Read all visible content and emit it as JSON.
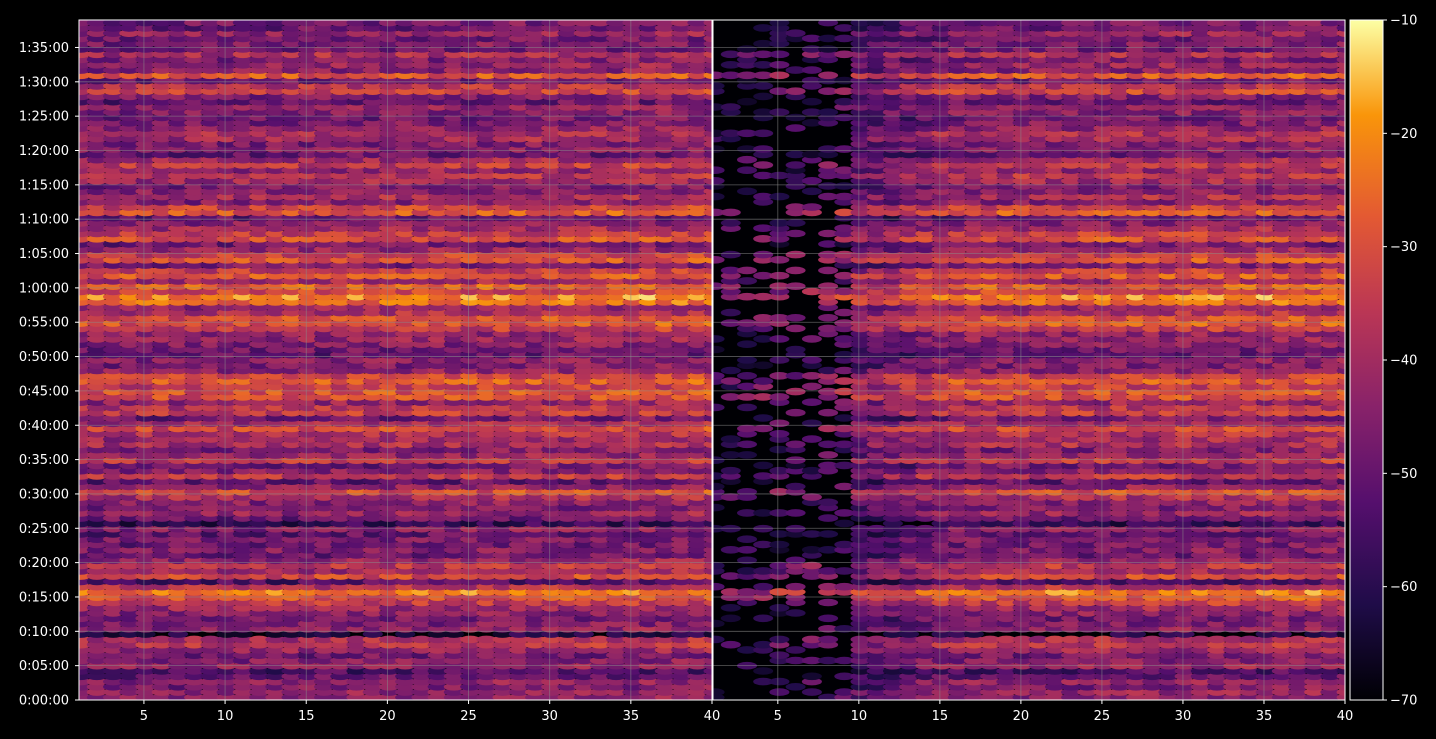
{
  "chart_data": {
    "type": "heatmap",
    "title": "",
    "xlabel": "",
    "ylabel": "",
    "colormap": "inferno",
    "background": "#000000",
    "grid": true,
    "grid_color": "#8a8a8a",
    "panels": [
      {
        "x_ticks": [
          "5",
          "10",
          "15",
          "20",
          "25",
          "30",
          "35",
          "40"
        ],
        "xlim": [
          1,
          40
        ],
        "quiet_region": false
      },
      {
        "x_ticks": [
          "5",
          "10",
          "15",
          "20",
          "25",
          "30",
          "35",
          "40"
        ],
        "xlim": [
          1,
          40
        ],
        "quiet_region": true
      }
    ],
    "y_ticks": [
      "0:00:00",
      "0:05:00",
      "0:10:00",
      "0:15:00",
      "0:20:00",
      "0:25:00",
      "0:30:00",
      "0:35:00",
      "0:40:00",
      "0:45:00",
      "0:50:00",
      "0:55:00",
      "1:00:00",
      "1:05:00",
      "1:10:00",
      "1:15:00",
      "1:20:00",
      "1:25:00",
      "1:30:00",
      "1:35:00"
    ],
    "ylim_seconds": [
      0,
      5940
    ],
    "colorbar": {
      "ticks": [
        "−10",
        "−20",
        "−30",
        "−40",
        "−50",
        "−60",
        "−70"
      ],
      "tick_values": [
        -10,
        -20,
        -30,
        -40,
        -50,
        -60,
        -70
      ],
      "range": [
        -70,
        -10
      ]
    },
    "row_levels": [
      -46,
      -44,
      -48,
      -45,
      -52,
      -56,
      -44,
      -47,
      -50,
      -43,
      -38,
      -40,
      -65,
      -45,
      -48,
      -50,
      -46,
      -42,
      -36,
      -30,
      -24,
      -38,
      -55,
      -33,
      -42,
      -37,
      -44,
      -51,
      -47,
      -50,
      -48,
      -52,
      -46,
      -60,
      -50,
      -44,
      -48,
      -46,
      -40,
      -32,
      -45,
      -52,
      -37,
      -46,
      -50,
      -36,
      -44,
      -48,
      -40,
      -42,
      -39,
      -33,
      -41,
      -50,
      -36,
      -38,
      -44,
      -32,
      -31,
      -36,
      -30,
      -34,
      -45,
      -48,
      -46,
      -52,
      -50,
      -47,
      -44,
      -45,
      -36,
      -30,
      -32,
      -40,
      -44,
      -26,
      -22,
      -34,
      -28,
      -42,
      -30,
      -36,
      -48,
      -31,
      -35,
      -44,
      -50,
      -32,
      -36,
      -42,
      -46,
      -52,
      -30,
      -34,
      -46,
      -40,
      -46,
      -48,
      -42,
      -38,
      -44,
      -36,
      -42,
      -52,
      -46,
      -48,
      -42,
      -40,
      -45,
      -48,
      -50,
      -47,
      -45,
      -52,
      -48,
      -34,
      -38,
      -50,
      -30,
      -46,
      -44,
      -48,
      -40,
      -50,
      -48,
      -50,
      -44,
      -51,
      -49
    ]
  }
}
